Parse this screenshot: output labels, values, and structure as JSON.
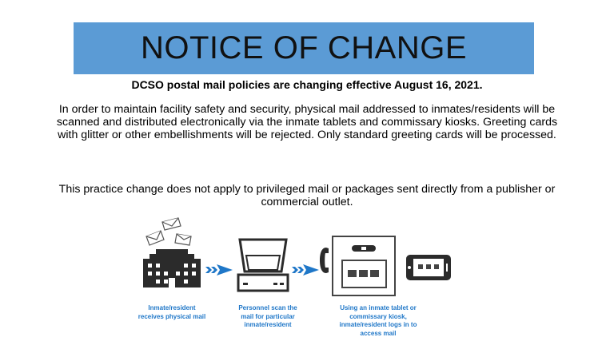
{
  "title": "NOTICE OF CHANGE",
  "banner_color": "#5b9bd5",
  "subtitle": "DCSO postal mail policies are changing effective August 16, 2021.",
  "paragraph1": "In order to maintain facility safety and security, physical mail addressed to inmates/residents will be scanned and distributed electronically via the inmate tablets and commissary kiosks. Greeting cards with glitter or other embellishments will be rejected.  Only standard greeting cards will be processed.",
  "paragraph2": "This practice change does not apply to privileged mail or packages sent directly from a publisher or commercial outlet.",
  "steps": [
    {
      "icon": "building-with-mail-icon",
      "caption": "Inmate/resident receives physical mail"
    },
    {
      "icon": "scanner-icon",
      "caption": "Personnel scan the mail for particular inmate/resident"
    },
    {
      "icon": "kiosk-and-tablet-icon",
      "caption": "Using an inmate tablet or commissary kiosk, inmate/resident logs in to access mail"
    }
  ],
  "caption_color": "#1f77c8",
  "arrow_color": "#1f77c8"
}
